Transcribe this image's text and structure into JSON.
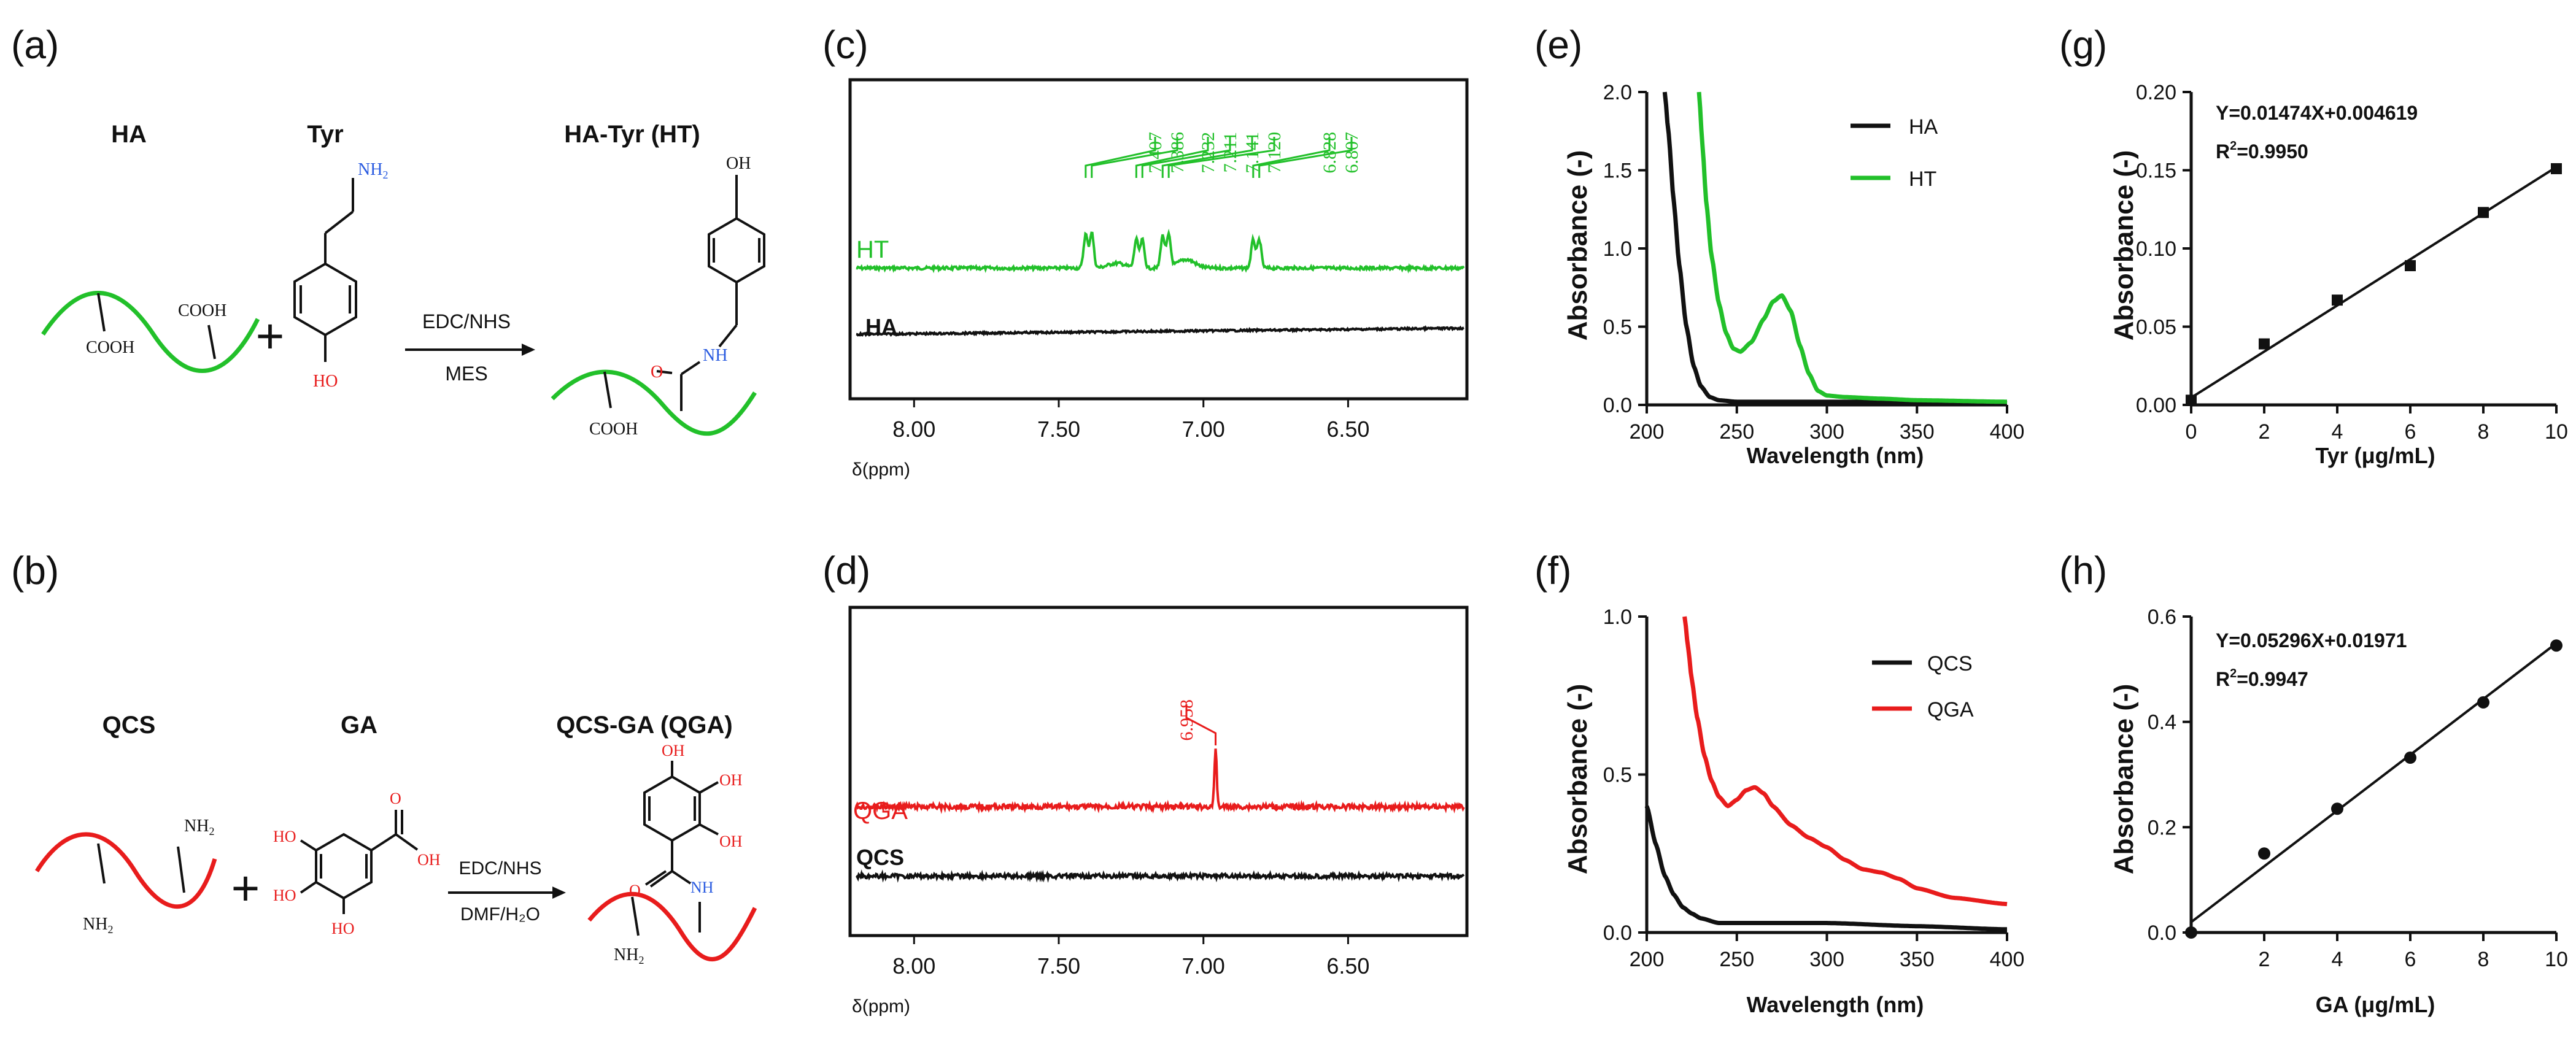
{
  "colors": {
    "black": "#111111",
    "green": "#22c02a",
    "red": "#e81c1c",
    "blue": "#2a5be0"
  },
  "panel_labels": [
    "(a)",
    "(b)",
    "(c)",
    "(d)",
    "(e)",
    "(f)",
    "(g)",
    "(h)"
  ],
  "scheme_a": {
    "reactant1": "HA",
    "reactant2": "Tyr",
    "product": "HA-Tyr (HT)",
    "cond_top": "EDC/NHS",
    "cond_bottom": "MES",
    "cooh": "COOH",
    "nh2": "NH",
    "nh2_sub": "2",
    "oh": "OH",
    "ho": "HO",
    "nh": "NH",
    "o": "O",
    "plus": "+"
  },
  "scheme_b": {
    "reactant1": "QCS",
    "reactant2": "GA",
    "product": "QCS-GA (QGA)",
    "cond_top": "EDC/NHS",
    "cond_bottom": "DMF/H₂O",
    "nh2": "NH",
    "nh2_sub": "2",
    "ho": "HO",
    "oh": "OH",
    "o": "O",
    "nh": "NH",
    "plus": "+"
  },
  "chart_data": [
    {
      "panel": "(c)",
      "type": "line",
      "title": "",
      "xlabel": "δ(ppm)",
      "xlim": [
        8.2,
        6.1
      ],
      "x_reversed": true,
      "xticks": [
        "8.00",
        "7.50",
        "7.00",
        "6.50"
      ],
      "xtick_values": [
        8.0,
        7.5,
        7.0,
        6.5
      ],
      "series": [
        {
          "name": "HT",
          "color": "green",
          "label": "HT",
          "peaks": [
            7.407,
            7.386,
            7.232,
            7.211,
            7.141,
            7.12,
            6.828,
            6.807
          ]
        },
        {
          "name": "HA",
          "color": "black",
          "label": "HA",
          "peaks": []
        }
      ],
      "annotations": [
        "7.407",
        "7.386",
        "7.232",
        "7.211",
        "7.141",
        "7.120",
        "6.828",
        "6.807"
      ]
    },
    {
      "panel": "(d)",
      "type": "line",
      "title": "",
      "xlabel": "δ(ppm)",
      "xlim": [
        8.2,
        6.1
      ],
      "x_reversed": true,
      "xticks": [
        "8.00",
        "7.50",
        "7.00",
        "6.50"
      ],
      "xtick_values": [
        8.0,
        7.5,
        7.0,
        6.5
      ],
      "series": [
        {
          "name": "QGA",
          "color": "red",
          "label": "QGA",
          "peaks": [
            6.958
          ]
        },
        {
          "name": "QCS",
          "color": "black",
          "label": "QCS",
          "peaks": []
        }
      ],
      "annotations": [
        "6.958"
      ]
    },
    {
      "panel": "(e)",
      "type": "line",
      "xlabel": "Wavelength (nm)",
      "ylabel": "Absorbance (-)",
      "xlim": [
        200,
        400
      ],
      "ylim": [
        0,
        2.0
      ],
      "xticks": [
        "200",
        "250",
        "300",
        "350",
        "400"
      ],
      "xtick_values": [
        200,
        250,
        300,
        350,
        400
      ],
      "yticks": [
        "0.0",
        "0.5",
        "1.0",
        "1.5",
        "2.0"
      ],
      "ytick_values": [
        0,
        0.5,
        1.0,
        1.5,
        2.0
      ],
      "legend": [
        "HA",
        "HT"
      ],
      "legend_position": "top-right",
      "series": [
        {
          "name": "HA",
          "color": "black",
          "x": [
            210,
            212,
            215,
            218,
            222,
            226,
            230,
            235,
            240,
            250,
            270,
            300,
            350,
            400
          ],
          "y": [
            2.0,
            1.75,
            1.3,
            0.9,
            0.5,
            0.25,
            0.12,
            0.05,
            0.03,
            0.02,
            0.02,
            0.02,
            0.02,
            0.01
          ]
        },
        {
          "name": "HT",
          "color": "green",
          "x": [
            229,
            231,
            233,
            236,
            240,
            244,
            248,
            252,
            258,
            265,
            270,
            275,
            280,
            285,
            290,
            295,
            300,
            310,
            330,
            350,
            400
          ],
          "y": [
            2.0,
            1.65,
            1.3,
            0.95,
            0.65,
            0.46,
            0.36,
            0.34,
            0.4,
            0.55,
            0.66,
            0.7,
            0.6,
            0.38,
            0.2,
            0.09,
            0.06,
            0.05,
            0.04,
            0.03,
            0.02
          ]
        }
      ]
    },
    {
      "panel": "(f)",
      "type": "line",
      "xlabel": "Wavelength (nm)",
      "ylabel": "Absorbance (-)",
      "xlim": [
        200,
        400
      ],
      "ylim": [
        0,
        1.0
      ],
      "xticks": [
        "200",
        "250",
        "300",
        "350",
        "400"
      ],
      "xtick_values": [
        200,
        250,
        300,
        350,
        400
      ],
      "yticks": [
        "0.0",
        "0.5",
        "1.0"
      ],
      "ytick_values": [
        0,
        0.5,
        1.0
      ],
      "legend": [
        "QCS",
        "QGA"
      ],
      "legend_position": "top-right",
      "series": [
        {
          "name": "QCS",
          "color": "black",
          "x": [
            200,
            205,
            210,
            215,
            220,
            225,
            230,
            240,
            250,
            300,
            350,
            400
          ],
          "y": [
            0.4,
            0.28,
            0.18,
            0.12,
            0.08,
            0.06,
            0.045,
            0.03,
            0.03,
            0.03,
            0.02,
            0.01
          ]
        },
        {
          "name": "QGA",
          "color": "red",
          "x": [
            221,
            223,
            225,
            228,
            232,
            236,
            240,
            245,
            250,
            255,
            260,
            265,
            270,
            280,
            290,
            300,
            310,
            320,
            330,
            340,
            350,
            370,
            400
          ],
          "y": [
            1.0,
            0.9,
            0.8,
            0.68,
            0.56,
            0.48,
            0.43,
            0.4,
            0.42,
            0.45,
            0.46,
            0.44,
            0.4,
            0.34,
            0.3,
            0.27,
            0.23,
            0.2,
            0.19,
            0.17,
            0.14,
            0.11,
            0.09
          ]
        }
      ]
    },
    {
      "panel": "(g)",
      "type": "scatter",
      "xlabel": "Tyr (μg/mL)",
      "ylabel": "Absorbance (-)",
      "xlim": [
        0,
        10
      ],
      "ylim": [
        0,
        0.2
      ],
      "xticks": [
        "0",
        "2",
        "4",
        "6",
        "8",
        "10"
      ],
      "xtick_values": [
        0,
        2,
        4,
        6,
        8,
        10
      ],
      "yticks": [
        "0.00",
        "0.05",
        "0.10",
        "0.15",
        "0.20"
      ],
      "ytick_values": [
        0,
        0.05,
        0.1,
        0.15,
        0.2
      ],
      "x": [
        0,
        2,
        4,
        6,
        8,
        10
      ],
      "y": [
        0.003,
        0.039,
        0.067,
        0.089,
        0.123,
        0.151
      ],
      "fit": {
        "slope": 0.01474,
        "intercept": 0.004619
      },
      "equation": "Y=0.01474X+0.004619",
      "r2_label": "R",
      "r2_sup": "2",
      "r2_value": "=0.9950"
    },
    {
      "panel": "(h)",
      "type": "scatter",
      "xlabel": "GA (μg/mL)",
      "ylabel": "Absorbance (-)",
      "xlim": [
        0,
        10
      ],
      "ylim": [
        0,
        0.6
      ],
      "xticks": [
        "2",
        "4",
        "6",
        "8",
        "10"
      ],
      "xtick_values": [
        2,
        4,
        6,
        8,
        10
      ],
      "yticks": [
        "0.0",
        "0.2",
        "0.4",
        "0.6"
      ],
      "ytick_values": [
        0,
        0.2,
        0.4,
        0.6
      ],
      "x": [
        0,
        2,
        4,
        6,
        8,
        10
      ],
      "y": [
        0.0,
        0.15,
        0.235,
        0.332,
        0.437,
        0.545
      ],
      "fit": {
        "slope": 0.05296,
        "intercept": 0.01971
      },
      "equation": "Y=0.05296X+0.01971",
      "r2_label": "R",
      "r2_sup": "2",
      "r2_value": "=0.9947"
    }
  ]
}
